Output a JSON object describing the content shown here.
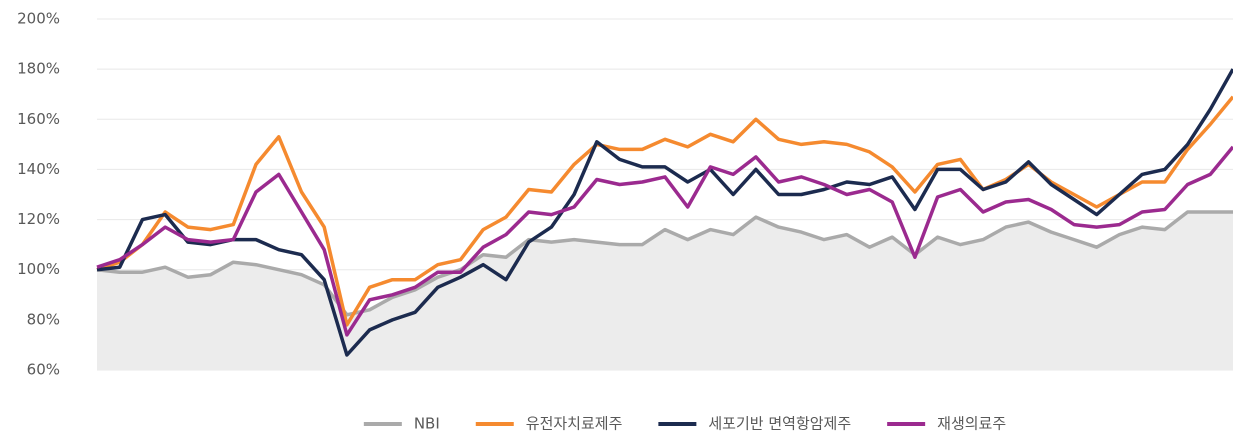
{
  "chart_data": {
    "type": "line",
    "categories": [
      null,
      null,
      null,
      null,
      null,
      null,
      null,
      null,
      null,
      null,
      null,
      null,
      null,
      null,
      null,
      null,
      null,
      null,
      null,
      null,
      null,
      null,
      null,
      null,
      null,
      null,
      null,
      null,
      null,
      null,
      null,
      null,
      null,
      null,
      null,
      null,
      null,
      null,
      null,
      null,
      null,
      null,
      null,
      null,
      null,
      null,
      null,
      null,
      null,
      null,
      null
    ],
    "series": [
      {
        "name": "NBI",
        "color": "#aaaaaa",
        "area": true,
        "values": [
          100,
          99,
          99,
          101,
          97,
          98,
          103,
          102,
          100,
          98,
          94,
          82,
          84,
          89,
          92,
          97,
          100,
          106,
          105,
          112,
          111,
          112,
          111,
          110,
          110,
          116,
          112,
          116,
          114,
          121,
          117,
          115,
          112,
          114,
          109,
          113,
          106,
          113,
          110,
          112,
          117,
          119,
          115,
          112,
          109,
          114,
          117,
          116,
          123,
          123,
          123
        ]
      },
      {
        "name": "유전자치료제주",
        "color": "#f58a2f",
        "values": [
          100,
          103,
          110,
          123,
          117,
          116,
          118,
          142,
          153,
          131,
          117,
          78,
          93,
          96,
          96,
          102,
          104,
          116,
          121,
          132,
          131,
          142,
          150,
          148,
          148,
          152,
          149,
          154,
          151,
          160,
          152,
          150,
          151,
          150,
          147,
          141,
          131,
          142,
          144,
          132,
          136,
          142,
          135,
          130,
          125,
          130,
          135,
          135,
          148,
          158,
          169
        ]
      },
      {
        "name": "세포기반 면역항암제주",
        "color": "#1c2b4f",
        "values": [
          100,
          101,
          120,
          122,
          111,
          110,
          112,
          112,
          108,
          106,
          96,
          66,
          76,
          80,
          83,
          93,
          97,
          102,
          96,
          111,
          117,
          130,
          151,
          144,
          141,
          141,
          135,
          140,
          130,
          140,
          130,
          130,
          132,
          135,
          134,
          137,
          124,
          140,
          140,
          132,
          135,
          143,
          134,
          128,
          122,
          130,
          138,
          140,
          150,
          164,
          180
        ]
      },
      {
        "name": "재생의료주",
        "color": "#9b2a8f",
        "values": [
          101,
          104,
          110,
          117,
          112,
          111,
          112,
          131,
          138,
          123,
          108,
          74,
          88,
          90,
          93,
          99,
          99,
          109,
          114,
          123,
          122,
          125,
          136,
          134,
          135,
          137,
          125,
          141,
          138,
          145,
          135,
          137,
          134,
          130,
          132,
          127,
          105,
          129,
          132,
          123,
          127,
          128,
          124,
          118,
          117,
          118,
          123,
          124,
          134,
          138,
          149
        ]
      }
    ],
    "ylim": [
      60,
      200
    ],
    "yticks": [
      {
        "value": 60,
        "label": "60%"
      },
      {
        "value": 80,
        "label": "80%"
      },
      {
        "value": 100,
        "label": "100%"
      },
      {
        "value": 120,
        "label": "120%"
      },
      {
        "value": 140,
        "label": "140%"
      },
      {
        "value": 160,
        "label": "160%"
      },
      {
        "value": 180,
        "label": "180%"
      },
      {
        "value": 200,
        "label": "200%"
      }
    ],
    "grid": true,
    "legend": "bottom"
  }
}
